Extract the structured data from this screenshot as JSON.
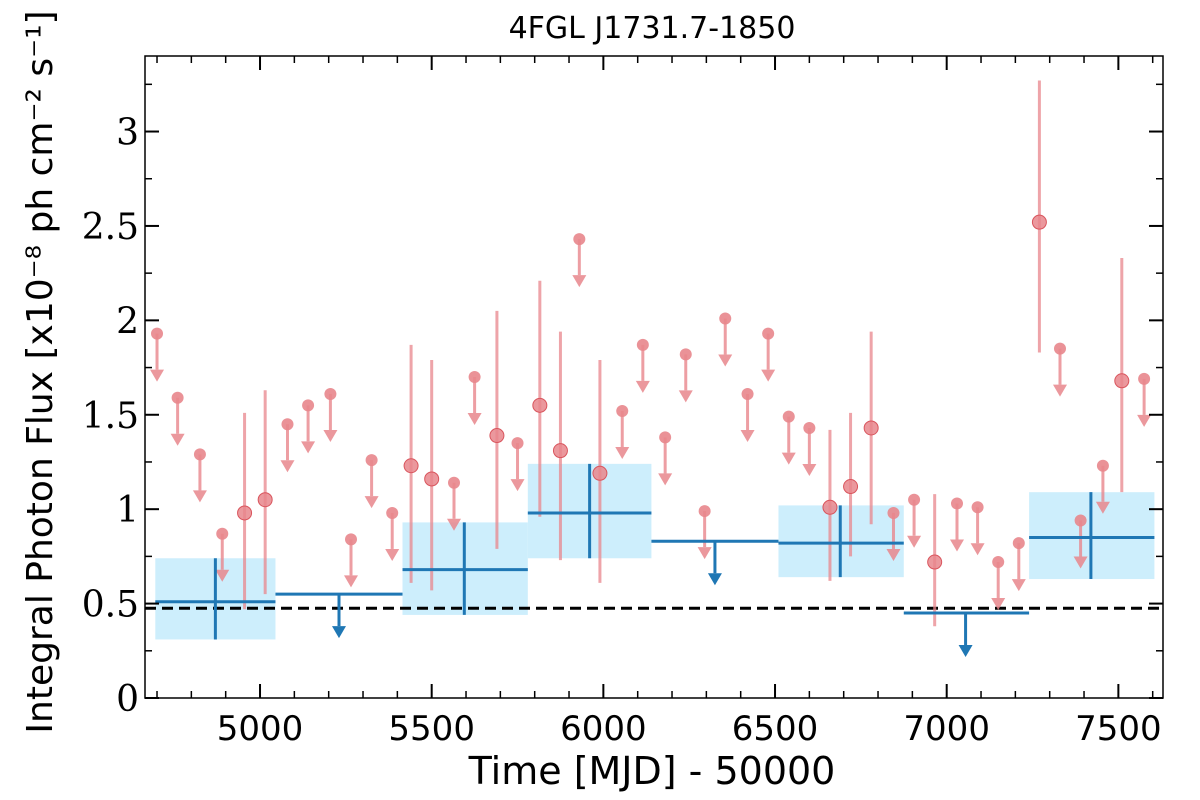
{
  "chart_data": {
    "type": "scatter",
    "title": "4FGL J1731.7-1850",
    "xlabel": "Time [MJD] - 50000",
    "ylabel": "Integral Photon Flux [x10⁻⁸ ph cm⁻² s⁻¹]",
    "xlim": [
      4665,
      7630
    ],
    "ylim": [
      0,
      3.4
    ],
    "x_ticks": [
      5000,
      5500,
      6000,
      6500,
      7000,
      7500
    ],
    "x_tick_labels": [
      "5000",
      "5500",
      "6000",
      "6500",
      "7000",
      "7500"
    ],
    "y_ticks": [
      0,
      0.5,
      1,
      1.5,
      2,
      2.5,
      3
    ],
    "y_tick_labels": [
      "0",
      "0.5",
      "1",
      "1.5",
      "2",
      "2.5",
      "3"
    ],
    "reference_line": {
      "y": 0.475,
      "style": "dashed",
      "color": "#000000"
    },
    "colors": {
      "short_bins": "#e8868c",
      "long_bins": "#1f77b4",
      "long_band": "#cdeefc"
    },
    "series": [
      {
        "binning": "short",
        "detections": [
          {
            "x": 4955,
            "y": 0.98,
            "ylow": 0.47,
            "yhigh": 1.51
          },
          {
            "x": 5015,
            "y": 1.05,
            "ylow": 0.55,
            "yhigh": 1.63
          },
          {
            "x": 5440,
            "y": 1.23,
            "ylow": 0.61,
            "yhigh": 1.87
          },
          {
            "x": 5500,
            "y": 1.16,
            "ylow": 0.57,
            "yhigh": 1.79
          },
          {
            "x": 5690,
            "y": 1.39,
            "ylow": 0.79,
            "yhigh": 2.05
          },
          {
            "x": 5815,
            "y": 1.55,
            "ylow": 0.96,
            "yhigh": 2.21
          },
          {
            "x": 5875,
            "y": 1.31,
            "ylow": 0.73,
            "yhigh": 1.94
          },
          {
            "x": 5990,
            "y": 1.19,
            "ylow": 0.61,
            "yhigh": 1.79
          },
          {
            "x": 6660,
            "y": 1.01,
            "ylow": 0.62,
            "yhigh": 1.42
          },
          {
            "x": 6720,
            "y": 1.12,
            "ylow": 0.75,
            "yhigh": 1.51
          },
          {
            "x": 6780,
            "y": 1.43,
            "ylow": 0.92,
            "yhigh": 1.94
          },
          {
            "x": 6965,
            "y": 0.72,
            "ylow": 0.38,
            "yhigh": 1.08
          },
          {
            "x": 7270,
            "y": 2.52,
            "ylow": 1.83,
            "yhigh": 3.27
          },
          {
            "x": 7510,
            "y": 1.68,
            "ylow": 1.09,
            "yhigh": 2.33
          }
        ],
        "upper_limits": [
          {
            "x": 4700,
            "y": 1.93
          },
          {
            "x": 4760,
            "y": 1.59
          },
          {
            "x": 4825,
            "y": 1.29
          },
          {
            "x": 4890,
            "y": 0.87
          },
          {
            "x": 5080,
            "y": 1.45
          },
          {
            "x": 5140,
            "y": 1.55
          },
          {
            "x": 5205,
            "y": 1.61
          },
          {
            "x": 5265,
            "y": 0.84
          },
          {
            "x": 5325,
            "y": 1.26
          },
          {
            "x": 5385,
            "y": 0.98
          },
          {
            "x": 5565,
            "y": 1.14
          },
          {
            "x": 5625,
            "y": 1.7
          },
          {
            "x": 5750,
            "y": 1.35
          },
          {
            "x": 5930,
            "y": 2.43
          },
          {
            "x": 6055,
            "y": 1.52
          },
          {
            "x": 6115,
            "y": 1.87
          },
          {
            "x": 6180,
            "y": 1.38
          },
          {
            "x": 6240,
            "y": 1.82
          },
          {
            "x": 6295,
            "y": 0.99
          },
          {
            "x": 6355,
            "y": 2.01
          },
          {
            "x": 6420,
            "y": 1.61
          },
          {
            "x": 6480,
            "y": 1.93
          },
          {
            "x": 6540,
            "y": 1.49
          },
          {
            "x": 6600,
            "y": 1.43
          },
          {
            "x": 6845,
            "y": 0.98
          },
          {
            "x": 6905,
            "y": 1.05
          },
          {
            "x": 7030,
            "y": 1.03
          },
          {
            "x": 7090,
            "y": 1.01
          },
          {
            "x": 7150,
            "y": 0.72
          },
          {
            "x": 7210,
            "y": 0.82
          },
          {
            "x": 7330,
            "y": 1.85
          },
          {
            "x": 7390,
            "y": 0.94
          },
          {
            "x": 7455,
            "y": 1.23
          },
          {
            "x": 7575,
            "y": 1.69
          }
        ]
      },
      {
        "binning": "long",
        "detections": [
          {
            "x": 4870,
            "xlow": 4695,
            "xhigh": 5045,
            "y": 0.51,
            "ylow": 0.31,
            "yhigh": 0.74
          },
          {
            "x": 5595,
            "xlow": 5415,
            "xhigh": 5780,
            "y": 0.68,
            "ylow": 0.44,
            "yhigh": 0.93
          },
          {
            "x": 5960,
            "xlow": 5780,
            "xhigh": 6140,
            "y": 0.98,
            "ylow": 0.74,
            "yhigh": 1.24
          },
          {
            "x": 6690,
            "xlow": 6510,
            "xhigh": 6875,
            "y": 0.82,
            "ylow": 0.64,
            "yhigh": 1.02
          },
          {
            "x": 7420,
            "xlow": 7240,
            "xhigh": 7605,
            "y": 0.85,
            "ylow": 0.63,
            "yhigh": 1.09
          }
        ],
        "upper_limits": [
          {
            "x": 5230,
            "xlow": 5045,
            "xhigh": 5415,
            "y": 0.55
          },
          {
            "x": 6325,
            "xlow": 6140,
            "xhigh": 6510,
            "y": 0.83
          },
          {
            "x": 7055,
            "xlow": 6875,
            "xhigh": 7240,
            "y": 0.45
          }
        ]
      }
    ]
  }
}
